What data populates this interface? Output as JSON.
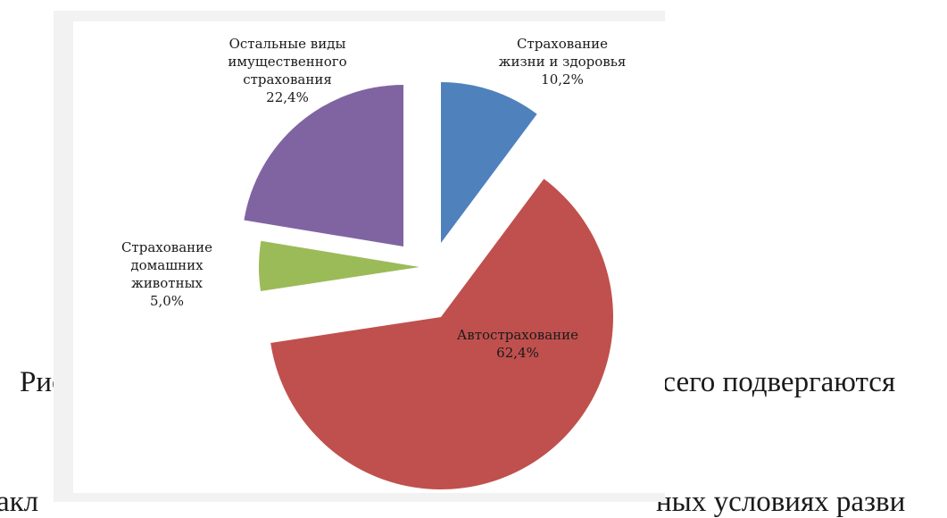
{
  "document": {
    "line1_left": "Рис",
    "line1_right": "всего подвергаются",
    "line2_left": "акл",
    "line2_right": "ных условиях разви"
  },
  "chart_data": {
    "type": "pie",
    "exploded": true,
    "title": "",
    "slices": [
      {
        "name": "Страхование жизни и здоровья",
        "label_lines": [
          "Страхование",
          "жизни и здоровья",
          "10,2%"
        ],
        "value": 10.2,
        "color": "#4f81bd"
      },
      {
        "name": "Автострахование",
        "label_lines": [
          "Автострахование",
          "62,4%"
        ],
        "value": 62.4,
        "color": "#c0504d"
      },
      {
        "name": "Страхование домашних животных",
        "label_lines": [
          "Страхование",
          "домашних",
          "животных",
          "5,0%"
        ],
        "value": 5.0,
        "color": "#9bbb59"
      },
      {
        "name": "Остальные виды имущественного страхования",
        "label_lines": [
          "Остальные виды",
          "имущественного",
          "страхования",
          "22,4%"
        ],
        "value": 22.4,
        "color": "#8064a2"
      }
    ]
  }
}
